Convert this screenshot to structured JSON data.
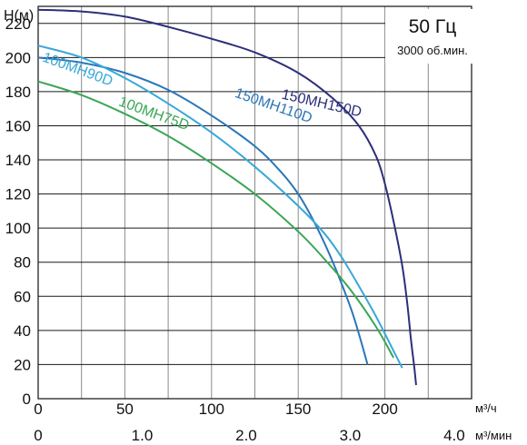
{
  "chart_data": {
    "type": "line",
    "title": "50 Гц",
    "subtitle": "3000 об.мин.",
    "ylabel": "H(м)",
    "xlabel": "м³/ч",
    "x2label": "м³/мин",
    "xlim": [
      0,
      250
    ],
    "ylim": [
      0,
      230
    ],
    "x_ticks": [
      "0",
      "50",
      "100",
      "150",
      "200"
    ],
    "x2_ticks": [
      "0",
      "1.0",
      "2.0",
      "3.0",
      "4.0"
    ],
    "y_ticks": [
      "0",
      "20",
      "40",
      "60",
      "80",
      "100",
      "120",
      "140",
      "160",
      "180",
      "200",
      "220"
    ],
    "grid": true,
    "series": [
      {
        "name": "150MH150D",
        "color": "#2b2f7a",
        "x": [
          0,
          25,
          50,
          75,
          100,
          125,
          150,
          170,
          185,
          195,
          200,
          205,
          210,
          213,
          215,
          217,
          218
        ],
        "y": [
          228,
          227,
          224,
          218,
          211,
          203,
          191,
          176,
          160,
          142,
          126,
          104,
          78,
          55,
          35,
          18,
          8
        ]
      },
      {
        "name": "150MH110D",
        "color": "#2a76b8",
        "x": [
          0,
          25,
          50,
          75,
          100,
          125,
          140,
          150,
          160,
          170,
          180,
          185,
          190
        ],
        "y": [
          200,
          197,
          191,
          181,
          166,
          148,
          133,
          120,
          102,
          80,
          54,
          38,
          20
        ]
      },
      {
        "name": "100MH90D",
        "color": "#37a8d9",
        "x": [
          0,
          25,
          50,
          75,
          100,
          125,
          150,
          165,
          175,
          185,
          195,
          205,
          210
        ],
        "y": [
          207,
          200,
          188,
          173,
          156,
          136,
          113,
          97,
          83,
          66,
          48,
          28,
          18
        ]
      },
      {
        "name": "100MH75D",
        "color": "#3aa655",
        "x": [
          0,
          25,
          50,
          75,
          100,
          125,
          150,
          165,
          180,
          195,
          205
        ],
        "y": [
          186,
          178,
          167,
          154,
          138,
          120,
          98,
          82,
          64,
          42,
          24
        ]
      }
    ]
  }
}
